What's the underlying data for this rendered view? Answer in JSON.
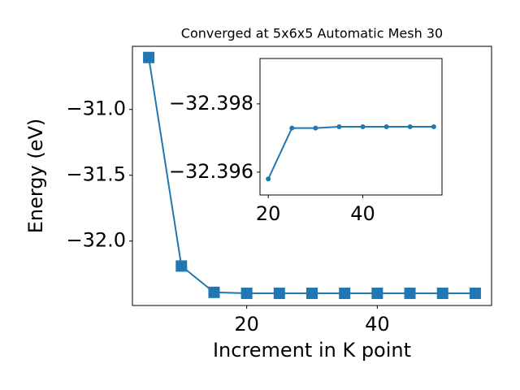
{
  "chart_data": [
    {
      "type": "line",
      "title": "Converged at 5x6x5 Automatic Mesh 30",
      "x_label": "Increment in K point",
      "y_label": "Energy (eV)",
      "x": [
        5,
        10,
        15,
        20,
        25,
        30,
        35,
        40,
        45,
        50,
        55
      ],
      "series": [
        {
          "color": "#1f77b4",
          "marker": "square",
          "values": [
            -30.605,
            -32.19,
            -32.39,
            -32.3973,
            -32.3973,
            -32.3973,
            -32.3973,
            -32.3973,
            -32.3973,
            -32.3973,
            -32.3973
          ]
        }
      ],
      "xlim": [
        2.5,
        57.5
      ],
      "xticks": [
        20,
        40
      ],
      "ylim": [
        -32.49,
        -30.52
      ],
      "yticks": [
        {
          "value": -32.0,
          "label": "−32.0"
        },
        {
          "value": -31.5,
          "label": "−31.5"
        },
        {
          "value": -31.0,
          "label": "−31.0"
        }
      ]
    },
    {
      "type": "line",
      "x": [
        20,
        25,
        30,
        35,
        40,
        45,
        50,
        55
      ],
      "series": [
        {
          "color": "#1f77b4",
          "marker": "circle",
          "values": [
            -32.3958,
            -32.39729,
            -32.39729,
            -32.39733,
            -32.39733,
            -32.39733,
            -32.39733,
            -32.39733
          ]
        }
      ],
      "xlim": [
        18.25,
        56.75
      ],
      "xticks": [
        20,
        40
      ],
      "ylim": [
        -32.39533,
        -32.39933
      ],
      "yticks": [
        {
          "value": -32.396,
          "label": "−32.396"
        },
        {
          "value": -32.398,
          "label": "−32.398"
        }
      ]
    }
  ]
}
